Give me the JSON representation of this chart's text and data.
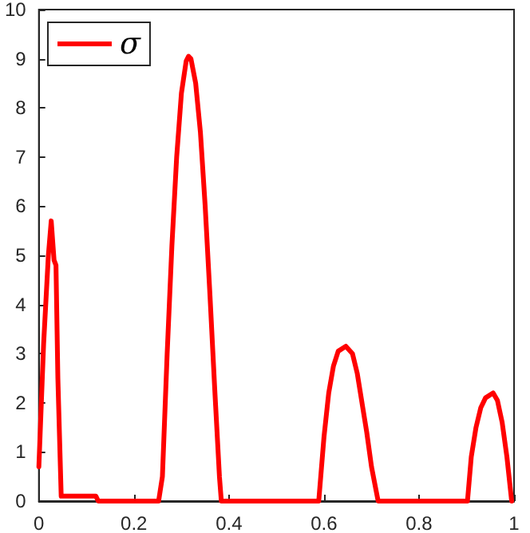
{
  "chart_data": {
    "type": "line",
    "legend": "top left",
    "marker": "none",
    "line_style": "solid",
    "grid": false,
    "xlim": [
      0,
      1
    ],
    "xticks": [
      0,
      0.2,
      0.4,
      0.6,
      0.8,
      1
    ],
    "ylim": [
      0,
      10
    ],
    "yticks": [
      0,
      1,
      2,
      3,
      4,
      5,
      6,
      7,
      8,
      9,
      10
    ],
    "series": [
      {
        "name": "σ",
        "color": "#ff0000",
        "x": [
          0,
          0.01,
          0.02,
          0.026,
          0.032,
          0.036,
          0.04,
          0.047,
          0.12,
          0.125,
          0.252,
          0.26,
          0.27,
          0.28,
          0.29,
          0.3,
          0.31,
          0.315,
          0.32,
          0.33,
          0.34,
          0.35,
          0.36,
          0.37,
          0.38,
          0.384,
          0.589,
          0.6,
          0.61,
          0.62,
          0.63,
          0.646,
          0.66,
          0.67,
          0.68,
          0.69,
          0.7,
          0.714,
          0.902,
          0.91,
          0.92,
          0.93,
          0.94,
          0.956,
          0.965,
          0.975,
          0.985,
          0.995
        ],
        "values": [
          0.7,
          3.2,
          5.0,
          5.7,
          4.9,
          4.8,
          2.5,
          0.1,
          0.1,
          0,
          0,
          0.5,
          3,
          5.2,
          7.0,
          8.3,
          8.95,
          9.05,
          9.0,
          8.5,
          7.5,
          6.0,
          4.2,
          2.3,
          0.5,
          0,
          0,
          1.3,
          2.2,
          2.75,
          3.05,
          3.15,
          3.0,
          2.6,
          2.0,
          1.4,
          0.7,
          0,
          0,
          0.9,
          1.5,
          1.9,
          2.1,
          2.2,
          2.05,
          1.6,
          0.9,
          0
        ]
      }
    ]
  }
}
